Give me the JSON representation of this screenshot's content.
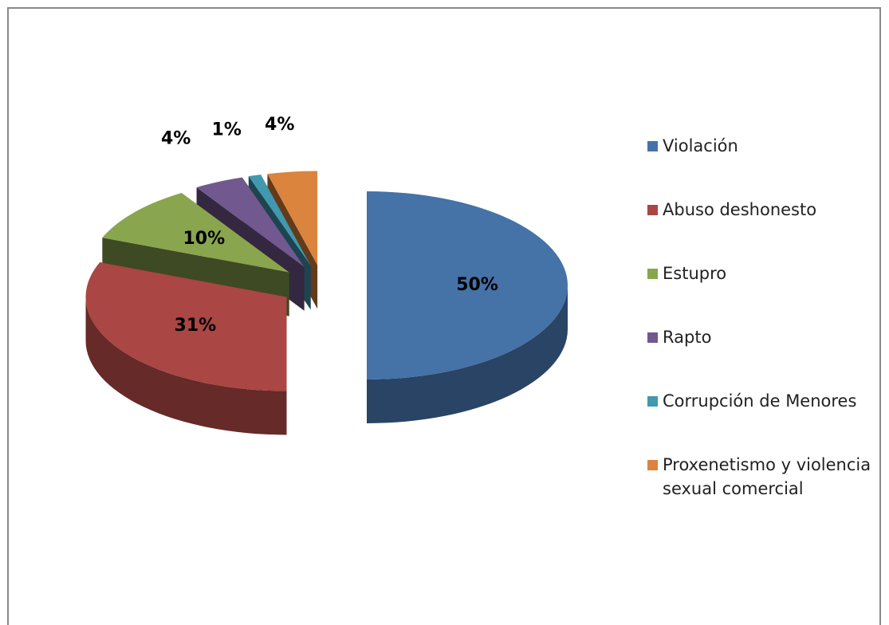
{
  "chart_data": {
    "type": "pie",
    "categories": [
      "Violación",
      "Abuso deshonesto",
      "Estupro",
      "Rapto",
      "Corrupción de Menores",
      "Proxenetismo y violencia sexual comercial"
    ],
    "values": [
      50,
      31,
      10,
      4,
      1,
      4
    ],
    "value_labels": [
      "50%",
      "31%",
      "10%",
      "4%",
      "1%",
      "4%"
    ],
    "colors": [
      "#4572a7",
      "#aa4643",
      "#89a54e",
      "#71588f",
      "#4198af",
      "#db843d"
    ],
    "legend": "right"
  }
}
